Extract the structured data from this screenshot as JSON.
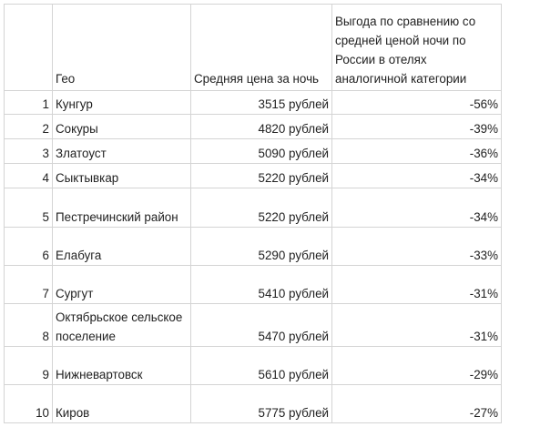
{
  "headers": {
    "num": "",
    "geo": "Гео",
    "price": "Средняя цена за ночь",
    "benefit": "Выгода по сравнению со средней ценой ночи по России в отелях аналогичной категории"
  },
  "rows": [
    {
      "num": "1",
      "geo": "Кунгур",
      "price": "3515 рублей",
      "benefit": "-56%"
    },
    {
      "num": "2",
      "geo": "Сокуры",
      "price": "4820 рублей",
      "benefit": "-39%"
    },
    {
      "num": "3",
      "geo": "Златоуст",
      "price": "5090 рублей",
      "benefit": "-36%"
    },
    {
      "num": "4",
      "geo": "Сыктывкар",
      "price": "5220 рублей",
      "benefit": "-34%"
    },
    {
      "num": "5",
      "geo": "Пестречинский район",
      "price": "5220 рублей",
      "benefit": "-34%"
    },
    {
      "num": "6",
      "geo": "Елабуга",
      "price": "5290 рублей",
      "benefit": "-33%"
    },
    {
      "num": "7",
      "geo": "Сургут",
      "price": "5410 рублей",
      "benefit": "-31%"
    },
    {
      "num": "8",
      "geo": "Октябрьское сельское поселение",
      "price": "5470 рублей",
      "benefit": "-31%"
    },
    {
      "num": "9",
      "geo": "Нижневартовск",
      "price": "5610 рублей",
      "benefit": "-29%"
    },
    {
      "num": "10",
      "geo": "Киров",
      "price": "5775 рублей",
      "benefit": "-27%"
    }
  ]
}
